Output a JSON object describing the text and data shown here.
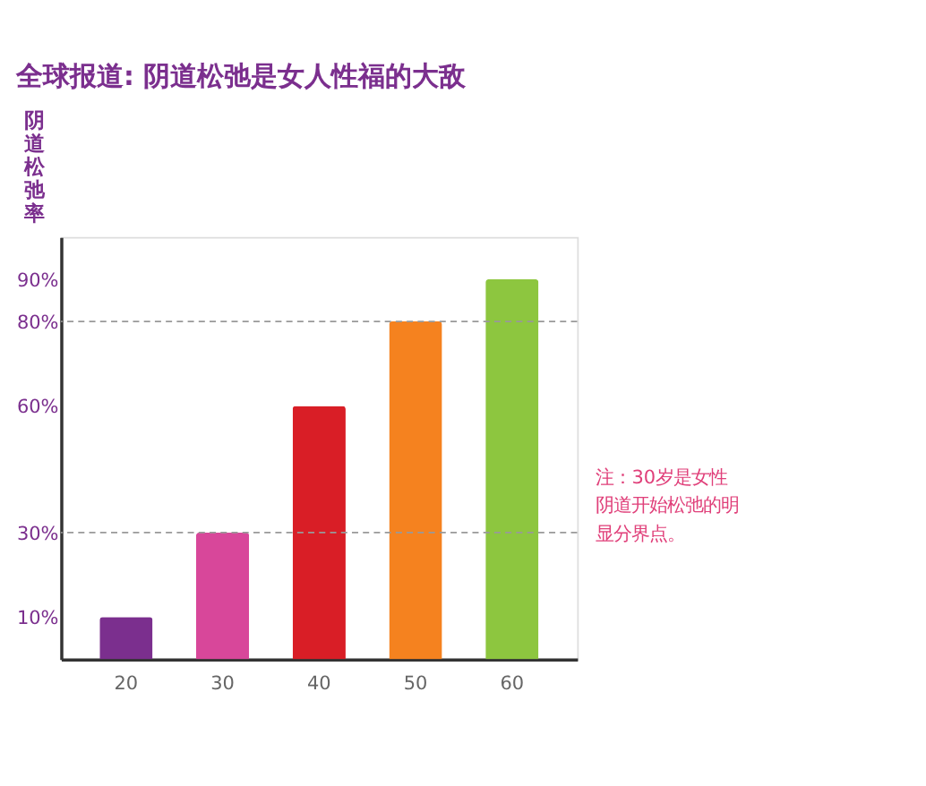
{
  "chart_data": {
    "type": "bar",
    "title": "全球报道: 阴道松弛是女人性福的大敌",
    "ylabel": "阴道松弛率",
    "categories": [
      "20",
      "30",
      "40",
      "50",
      "60"
    ],
    "values": [
      10,
      30,
      60,
      80,
      90
    ],
    "colors": [
      "#7b2f8e",
      "#d8479a",
      "#d91e26",
      "#f5821f",
      "#8dc63f"
    ],
    "ylim": [
      0,
      100
    ],
    "yticks": [
      {
        "value": 10,
        "label": "10%"
      },
      {
        "value": 30,
        "label": "30%"
      },
      {
        "value": 60,
        "label": "60%"
      },
      {
        "value": 80,
        "label": "80%"
      },
      {
        "value": 90,
        "label": "90%"
      }
    ],
    "ref_lines": [
      {
        "axis": "y",
        "value": 30,
        "color": "#999999",
        "line_style": "dashed"
      },
      {
        "axis": "y",
        "value": 80,
        "color": "#999999",
        "line_style": "dashed"
      }
    ],
    "annotations": [
      "注：30岁是女性阴道开始松弛的明显分界点。"
    ],
    "grid": false
  }
}
